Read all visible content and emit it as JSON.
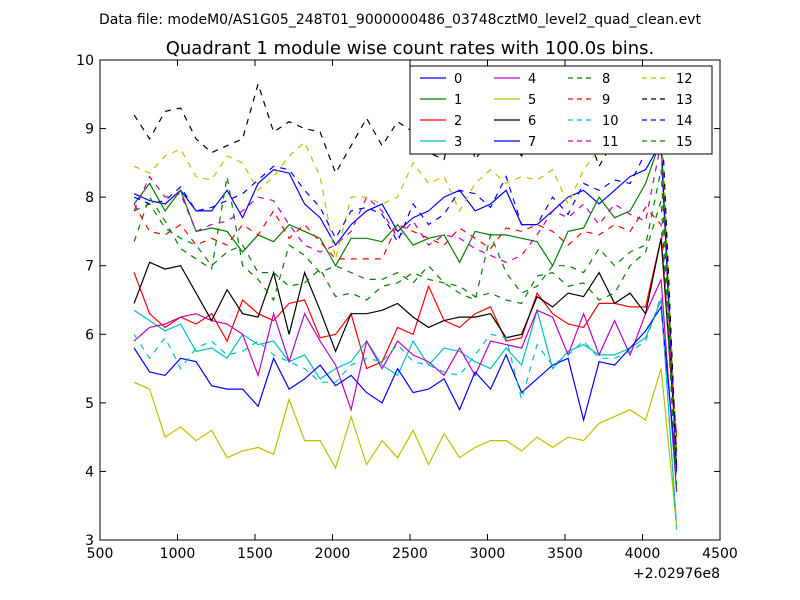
{
  "figure": {
    "suptitle": "Data file: modeM0/AS1G05_248T01_9000000486_03748cztM0_level2_quad_clean.evt"
  },
  "chart_data": {
    "type": "line",
    "title": "Quadrant 1 module wise count rates with 100.0s bins.",
    "xlabel": "",
    "ylabel": "",
    "x_offset_label": "+2.02976e8",
    "xlim": [
      500,
      4500
    ],
    "ylim": [
      3,
      10
    ],
    "xticks": [
      "500",
      "1000",
      "1500",
      "2000",
      "2500",
      "3000",
      "3500",
      "4000",
      "4500"
    ],
    "yticks": [
      "3",
      "4",
      "5",
      "6",
      "7",
      "8",
      "9",
      "10"
    ],
    "grid": false,
    "legend_position": "top-right",
    "x": [
      720,
      820,
      920,
      1020,
      1120,
      1220,
      1320,
      1420,
      1520,
      1620,
      1720,
      1820,
      1920,
      2020,
      2120,
      2220,
      2320,
      2420,
      2520,
      2620,
      2720,
      2820,
      2920,
      3020,
      3120,
      3220,
      3320,
      3420,
      3520,
      3620,
      3720,
      3820,
      3920,
      4020,
      4120,
      4220
    ],
    "series": [
      {
        "name": "0",
        "color": "#0000ff",
        "dash": "solid",
        "values": [
          8.05,
          7.95,
          7.9,
          8.1,
          7.8,
          7.8,
          8.1,
          7.7,
          8.2,
          8.4,
          8.35,
          7.9,
          7.7,
          7.3,
          7.6,
          7.8,
          7.9,
          7.5,
          7.7,
          7.8,
          8.0,
          8.1,
          7.8,
          7.9,
          8.1,
          7.6,
          7.6,
          7.8,
          8.0,
          8.1,
          7.9,
          8.1,
          8.3,
          8.4,
          8.8,
          4.0
        ]
      },
      {
        "name": "1",
        "color": "#008000",
        "dash": "solid",
        "values": [
          7.9,
          8.2,
          7.8,
          8.1,
          7.5,
          7.55,
          7.5,
          7.2,
          7.45,
          7.35,
          7.6,
          7.5,
          7.4,
          7.0,
          7.4,
          7.4,
          7.35,
          7.6,
          7.3,
          7.4,
          7.45,
          7.05,
          7.5,
          7.45,
          7.45,
          7.4,
          7.35,
          7.0,
          7.5,
          7.55,
          8.0,
          7.7,
          7.8,
          8.2,
          8.85,
          4.1
        ]
      },
      {
        "name": "2",
        "color": "#ff0000",
        "dash": "solid",
        "values": [
          6.9,
          6.3,
          6.1,
          6.25,
          6.15,
          6.3,
          5.9,
          6.5,
          6.3,
          6.2,
          6.45,
          6.5,
          5.95,
          6.0,
          6.3,
          5.5,
          5.6,
          6.1,
          6.0,
          6.7,
          6.2,
          6.1,
          6.3,
          6.4,
          5.9,
          5.95,
          6.6,
          6.3,
          6.15,
          6.1,
          6.45,
          6.45,
          6.4,
          6.4,
          7.4,
          4.5
        ]
      },
      {
        "name": "3",
        "color": "#00bfbf",
        "dash": "solid",
        "values": [
          6.35,
          6.2,
          6.05,
          6.15,
          5.75,
          5.8,
          5.65,
          6.0,
          5.85,
          5.9,
          5.6,
          5.7,
          5.35,
          5.5,
          5.6,
          5.9,
          5.55,
          5.4,
          5.9,
          5.55,
          5.8,
          5.75,
          5.6,
          5.5,
          5.8,
          5.55,
          6.35,
          5.5,
          5.75,
          5.85,
          5.7,
          5.7,
          5.8,
          5.95,
          6.5,
          3.2
        ]
      },
      {
        "name": "4",
        "color": "#bf00bf",
        "dash": "solid",
        "values": [
          5.9,
          6.1,
          6.15,
          6.25,
          6.3,
          6.2,
          6.15,
          6.0,
          5.4,
          6.3,
          5.6,
          6.3,
          5.9,
          5.55,
          4.9,
          5.9,
          5.5,
          5.9,
          5.7,
          5.6,
          5.4,
          5.8,
          5.4,
          5.9,
          5.85,
          5.8,
          6.35,
          6.25,
          5.7,
          6.3,
          5.7,
          6.2,
          5.7,
          6.3,
          6.8,
          3.7
        ]
      },
      {
        "name": "5",
        "color": "#bfbf00",
        "dash": "solid",
        "values": [
          5.3,
          5.2,
          4.5,
          4.65,
          4.45,
          4.6,
          4.2,
          4.3,
          4.35,
          4.25,
          5.05,
          4.45,
          4.45,
          4.05,
          4.8,
          4.1,
          4.45,
          4.2,
          4.6,
          4.1,
          4.55,
          4.2,
          4.35,
          4.45,
          4.45,
          4.3,
          4.5,
          4.35,
          4.5,
          4.45,
          4.7,
          4.8,
          4.9,
          4.75,
          5.5,
          3.2
        ]
      },
      {
        "name": "6",
        "color": "#000000",
        "dash": "solid",
        "values": [
          6.45,
          7.05,
          6.95,
          7.0,
          6.6,
          6.2,
          6.65,
          6.3,
          6.25,
          6.9,
          6.0,
          6.9,
          6.35,
          5.75,
          6.3,
          6.3,
          6.35,
          6.45,
          6.25,
          6.1,
          6.2,
          6.25,
          6.25,
          6.3,
          5.95,
          6.0,
          6.55,
          6.4,
          6.6,
          6.55,
          6.9,
          6.45,
          6.6,
          6.3,
          7.4,
          4.3
        ]
      },
      {
        "name": "7",
        "color": "#0000ff",
        "dash": "solid",
        "values": [
          5.8,
          5.45,
          5.4,
          5.65,
          5.6,
          5.25,
          5.2,
          5.2,
          4.95,
          5.65,
          5.2,
          5.35,
          5.55,
          5.25,
          5.4,
          5.15,
          5.0,
          5.5,
          5.15,
          5.2,
          5.35,
          4.9,
          5.45,
          5.2,
          5.7,
          5.15,
          5.35,
          5.55,
          5.65,
          4.75,
          5.6,
          5.55,
          5.8,
          6.05,
          6.4,
          4.0
        ]
      },
      {
        "name": "8",
        "color": "#008000",
        "dash": "dashed",
        "values": [
          7.35,
          8.0,
          7.65,
          7.25,
          7.1,
          6.95,
          8.3,
          7.0,
          6.8,
          6.5,
          7.3,
          7.15,
          6.9,
          7.0,
          6.9,
          6.8,
          6.8,
          6.9,
          6.75,
          7.0,
          6.75,
          6.6,
          6.5,
          7.45,
          6.9,
          6.6,
          6.7,
          7.0,
          7.0,
          6.9,
          7.25,
          7.0,
          7.2,
          7.3,
          8.4,
          3.8
        ]
      },
      {
        "name": "9",
        "color": "#ff0000",
        "dash": "dashed",
        "values": [
          7.9,
          7.5,
          7.45,
          7.6,
          7.3,
          7.4,
          7.3,
          7.6,
          7.45,
          7.8,
          7.4,
          7.6,
          7.35,
          7.1,
          7.1,
          7.1,
          7.1,
          7.6,
          7.5,
          7.4,
          7.3,
          7.55,
          7.4,
          7.25,
          7.55,
          7.5,
          7.6,
          7.5,
          7.3,
          7.5,
          7.45,
          7.6,
          7.5,
          7.85,
          7.6,
          4.3
        ]
      },
      {
        "name": "10",
        "color": "#00bfbf",
        "dash": "dashed",
        "values": [
          6.0,
          5.65,
          5.95,
          5.5,
          5.8,
          5.9,
          5.7,
          5.75,
          5.9,
          5.7,
          5.6,
          5.5,
          5.3,
          5.3,
          5.55,
          5.65,
          5.6,
          5.85,
          5.6,
          5.55,
          5.45,
          5.4,
          5.7,
          6.0,
          5.95,
          5.05,
          5.85,
          5.55,
          5.7,
          5.9,
          5.65,
          5.65,
          5.75,
          5.9,
          6.55,
          3.15
        ]
      },
      {
        "name": "11",
        "color": "#bf00bf",
        "dash": "dashed",
        "values": [
          7.8,
          8.3,
          8.0,
          8.05,
          7.5,
          7.6,
          7.65,
          7.8,
          8.0,
          7.95,
          7.6,
          7.3,
          7.2,
          7.3,
          7.5,
          8.0,
          7.8,
          7.4,
          7.65,
          7.3,
          7.45,
          7.4,
          7.25,
          7.15,
          7.05,
          7.15,
          7.45,
          7.8,
          7.7,
          7.9,
          7.6,
          7.9,
          7.75,
          7.65,
          8.8,
          4.0
        ]
      },
      {
        "name": "12",
        "color": "#bfbf00",
        "dash": "dashed",
        "values": [
          8.45,
          8.35,
          8.6,
          8.7,
          8.3,
          8.25,
          8.6,
          8.5,
          8.1,
          8.3,
          8.6,
          8.8,
          8.3,
          7.1,
          8.0,
          8.0,
          7.9,
          8.0,
          8.5,
          8.2,
          8.3,
          7.8,
          8.2,
          8.4,
          8.2,
          8.3,
          8.25,
          8.4,
          7.9,
          8.4,
          8.7,
          8.75,
          8.75,
          8.8,
          9.3,
          4.2
        ]
      },
      {
        "name": "13",
        "color": "#000000",
        "dash": "dashed",
        "values": [
          9.2,
          8.85,
          9.25,
          9.3,
          8.85,
          8.65,
          8.75,
          8.85,
          9.65,
          8.95,
          9.1,
          9.0,
          8.95,
          8.35,
          8.75,
          9.15,
          8.75,
          9.1,
          8.95,
          8.65,
          8.55,
          9.55,
          8.55,
          8.85,
          8.9,
          8.6,
          9.05,
          8.75,
          9.1,
          9.1,
          8.45,
          8.85,
          9.6,
          9.4,
          9.4,
          4.1
        ]
      },
      {
        "name": "14",
        "color": "#0000ff",
        "dash": "dashed",
        "values": [
          8.0,
          7.9,
          7.95,
          8.15,
          7.8,
          7.85,
          7.95,
          8.05,
          8.25,
          8.45,
          8.4,
          8.1,
          7.85,
          7.4,
          7.8,
          7.85,
          7.75,
          7.35,
          7.9,
          7.6,
          7.75,
          8.1,
          8.05,
          7.85,
          8.3,
          7.6,
          7.6,
          8.0,
          7.75,
          8.2,
          8.1,
          8.25,
          8.2,
          8.65,
          8.75,
          4.05
        ]
      },
      {
        "name": "15",
        "color": "#008000",
        "dash": "dashed",
        "values": [
          7.8,
          7.9,
          7.55,
          7.4,
          7.3,
          7.0,
          7.2,
          7.3,
          6.9,
          6.9,
          6.7,
          6.75,
          6.95,
          6.55,
          6.6,
          6.5,
          6.7,
          6.75,
          6.9,
          6.8,
          6.75,
          6.7,
          6.55,
          6.6,
          6.5,
          6.45,
          6.85,
          6.9,
          6.7,
          6.75,
          6.5,
          6.6,
          7.0,
          7.2,
          7.95,
          3.7
        ]
      }
    ]
  }
}
